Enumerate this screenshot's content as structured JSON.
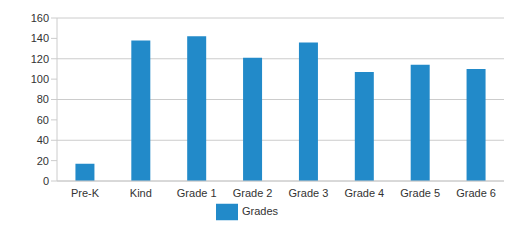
{
  "chart_data": {
    "type": "bar",
    "categories": [
      "Pre-K",
      "Kind",
      "Grade 1",
      "Grade 2",
      "Grade 3",
      "Grade 4",
      "Grade 5",
      "Grade 6"
    ],
    "series": [
      {
        "name": "Grades",
        "color": "#228ac9",
        "values": [
          17,
          138,
          142,
          121,
          136,
          107,
          114,
          110
        ]
      }
    ],
    "ylim": [
      0,
      160
    ],
    "yticks": [
      0,
      20,
      40,
      60,
      80,
      100,
      120,
      140,
      160
    ],
    "grid": true,
    "legend": "bottom"
  }
}
